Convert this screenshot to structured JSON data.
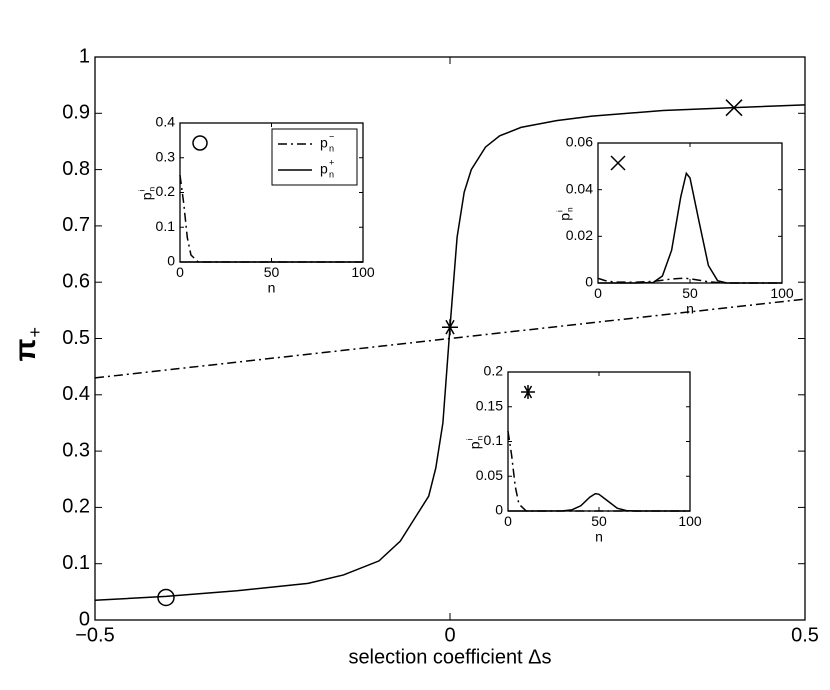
{
  "chart_data": [
    {
      "type": "line",
      "xlabel": "selection coefficient Δs",
      "ylabel": "π",
      "ylabel_sub": "+",
      "xlim": [
        -0.5,
        0.5
      ],
      "ylim": [
        0,
        1
      ],
      "xticks": [
        {
          "value": -0.5,
          "label": "−0.5"
        },
        0,
        0.5
      ],
      "yticks": [
        0,
        0.1,
        0.2,
        0.3,
        0.4,
        0.5,
        0.6,
        0.7,
        0.8,
        0.9,
        1
      ],
      "series": [
        {
          "color": "#000",
          "style": "solid",
          "x": [
            -0.5,
            -0.4,
            -0.3,
            -0.2,
            -0.15,
            -0.1,
            -0.07,
            -0.05,
            -0.03,
            -0.02,
            -0.01,
            0,
            0.01,
            0.02,
            0.03,
            0.05,
            0.07,
            0.1,
            0.15,
            0.2,
            0.3,
            0.4,
            0.5
          ],
          "values": [
            0.035,
            0.042,
            0.052,
            0.065,
            0.08,
            0.105,
            0.14,
            0.18,
            0.22,
            0.27,
            0.35,
            0.52,
            0.68,
            0.76,
            0.8,
            0.84,
            0.86,
            0.875,
            0.887,
            0.895,
            0.905,
            0.91,
            0.915
          ]
        },
        {
          "color": "#000",
          "style": "dashdot",
          "x": [
            -0.5,
            0.5
          ],
          "values": [
            0.43,
            0.57
          ]
        }
      ],
      "points": [
        {
          "x": -0.4,
          "y": 0.04,
          "marker": "circle"
        },
        {
          "x": 0,
          "y": 0.52,
          "marker": "star"
        },
        {
          "x": 0.4,
          "y": 0.91,
          "marker": "x"
        }
      ]
    },
    {
      "type": "line",
      "xlabel": "n",
      "ylabel": "p",
      "ylabel_sub": "n",
      "ylabel_sup": "i",
      "marker": "circle",
      "xlim": [
        0,
        100
      ],
      "ylim": [
        0,
        0.4
      ],
      "xticks": [
        0,
        50,
        100
      ],
      "yticks": [
        0,
        0.1,
        0.2,
        0.3,
        0.4
      ],
      "legend": "upper right",
      "series": [
        {
          "name": "p",
          "name_sub": "n",
          "name_sup": "−",
          "color": "#000",
          "style": "dashdot",
          "x": [
            0,
            2,
            4,
            6,
            10,
            50,
            100
          ],
          "values": [
            0.25,
            0.17,
            0.07,
            0.02,
            0,
            0,
            0
          ]
        },
        {
          "name": "p",
          "name_sub": "n",
          "name_sup": "+",
          "color": "#000",
          "style": "solid",
          "x": [
            0,
            50,
            100
          ],
          "values": [
            0,
            0,
            0
          ]
        }
      ]
    },
    {
      "type": "line",
      "xlabel": "n",
      "ylabel": "p",
      "ylabel_sub": "n",
      "ylabel_sup": "i",
      "marker": "x",
      "xlim": [
        0,
        100
      ],
      "ylim": [
        0,
        0.06
      ],
      "xticks": [
        0,
        50,
        100
      ],
      "yticks": [
        0,
        0.02,
        0.04,
        0.06
      ],
      "series": [
        {
          "color": "#000",
          "style": "dashdot",
          "x": [
            0,
            2,
            4,
            6,
            10,
            20,
            30,
            35,
            40,
            45,
            48,
            50,
            55,
            60,
            65,
            70,
            80,
            100
          ],
          "values": [
            0.002,
            0.0015,
            0.001,
            0.0007,
            0.0004,
            0.0003,
            0.0007,
            0.0012,
            0.0017,
            0.002,
            0.002,
            0.0018,
            0.0012,
            0.0005,
            0.0002,
            0,
            0,
            0
          ]
        },
        {
          "color": "#000",
          "style": "solid",
          "x": [
            0,
            2,
            4,
            6,
            10,
            20,
            30,
            35,
            40,
            45,
            48,
            50,
            55,
            60,
            65,
            70,
            80,
            100
          ],
          "values": [
            0,
            0,
            0,
            0,
            0,
            0,
            0.0002,
            0.003,
            0.014,
            0.037,
            0.047,
            0.045,
            0.026,
            0.0075,
            0.001,
            0,
            0,
            0
          ]
        }
      ]
    },
    {
      "type": "line",
      "xlabel": "n",
      "ylabel": "p",
      "ylabel_sub": "n",
      "ylabel_sup": "i",
      "marker": "star",
      "xlim": [
        0,
        100
      ],
      "ylim": [
        0,
        0.2
      ],
      "xticks": [
        0,
        50,
        100
      ],
      "yticks": [
        0,
        0.05,
        0.1,
        0.15,
        0.2
      ],
      "series": [
        {
          "color": "#000",
          "style": "dashdot",
          "x": [
            0,
            2,
            4,
            6,
            10,
            50,
            100
          ],
          "values": [
            0.115,
            0.08,
            0.035,
            0.01,
            0,
            0,
            0
          ]
        },
        {
          "color": "#000",
          "style": "solid",
          "x": [
            0,
            10,
            20,
            30,
            35,
            40,
            45,
            48,
            50,
            55,
            60,
            65,
            70,
            80,
            100
          ],
          "values": [
            0,
            0,
            0,
            0.0001,
            0.0016,
            0.0075,
            0.02,
            0.025,
            0.024,
            0.014,
            0.004,
            0.0005,
            0,
            0,
            0
          ]
        }
      ]
    }
  ]
}
